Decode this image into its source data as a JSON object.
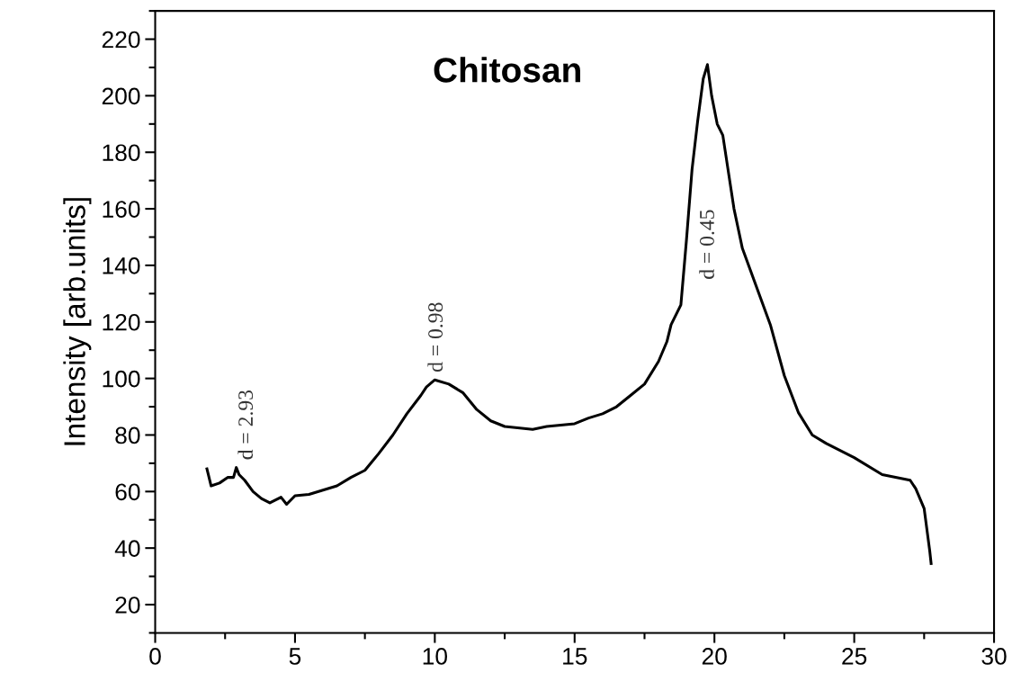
{
  "chart_data": {
    "type": "line",
    "title": "Chitosan",
    "ylabel": "Intensity [arb.units]",
    "xlim": [
      0,
      30
    ],
    "xticks": [
      0,
      5,
      10,
      15,
      20,
      25,
      30
    ],
    "ylim": [
      10,
      230
    ],
    "yticks": [
      20,
      40,
      60,
      80,
      100,
      120,
      140,
      160,
      180,
      200,
      220
    ],
    "grid": false,
    "legend": false,
    "marker": "none",
    "line_style": "solid",
    "annotations": [
      {
        "text": "d = 2.93",
        "x": 2.9,
        "y": 68.5
      },
      {
        "text": "d = 0.98",
        "x": 10,
        "y": 99.5
      },
      "d = 0.45"
    ],
    "series": [
      {
        "color": "#000000",
        "x": [
          1.85,
          1.9,
          2.0,
          2.3,
          2.6,
          2.8,
          2.9,
          3.0,
          3.2,
          3.5,
          3.8,
          4.1,
          4.5,
          4.7,
          5.0,
          5.5,
          6.0,
          6.5,
          7.0,
          7.5,
          8.0,
          8.5,
          9.0,
          9.5,
          9.7,
          10.0,
          10.5,
          11.0,
          11.5,
          12.0,
          12.5,
          13.5,
          14.0,
          15.0,
          15.5,
          16.0,
          16.5,
          17.0,
          17.5,
          18.0,
          18.3,
          18.45,
          18.8,
          19.0,
          19.2,
          19.4,
          19.6,
          19.75,
          19.9,
          20.1,
          20.3,
          20.7,
          21.0,
          22.0,
          22.5,
          23.0,
          23.5,
          24.0,
          25.0,
          26.0,
          27.0,
          27.2,
          27.5,
          27.7,
          27.75
        ],
        "values": [
          68,
          66,
          62,
          63,
          65,
          65,
          68.5,
          66,
          64,
          60,
          57.5,
          56,
          58,
          55.5,
          58.5,
          59,
          60.5,
          62,
          65,
          67.5,
          73.5,
          80,
          87.5,
          94,
          97,
          99.5,
          98,
          95,
          89,
          85,
          83,
          82,
          83,
          84,
          86,
          87.5,
          90,
          94,
          98,
          106,
          113,
          119,
          126,
          149,
          174,
          191,
          206,
          211,
          200,
          190,
          186,
          160,
          146,
          119,
          101,
          88,
          80,
          77,
          72,
          66,
          64,
          61,
          54,
          39,
          34.5
        ]
      }
    ]
  }
}
